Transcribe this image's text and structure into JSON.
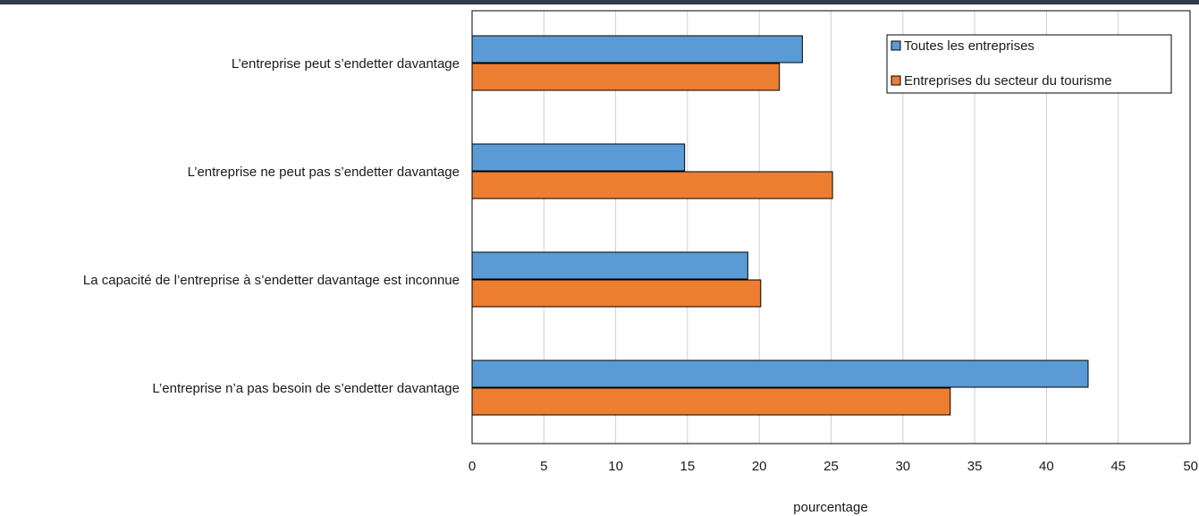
{
  "chart_data": {
    "type": "bar",
    "orientation": "horizontal",
    "title": "",
    "xlabel": "pourcentage",
    "ylabel": "",
    "categories": [
      "L’entreprise peut s’endetter davantage",
      "L’entreprise ne peut pas s’endetter davantage",
      "La capacité de l’entreprise à s’endetter davantage est inconnue",
      "L’entreprise n’a pas besoin de s’endetter davantage"
    ],
    "series": [
      {
        "name": "Toutes les entreprises",
        "color": "#5b9bd5",
        "values": [
          23.0,
          14.8,
          19.2,
          42.9
        ]
      },
      {
        "name": "Entreprises du secteur du tourisme",
        "color": "#ed7d31",
        "values": [
          21.4,
          25.1,
          20.1,
          33.3
        ]
      }
    ],
    "xlim": [
      0,
      50
    ],
    "xticks": [
      0,
      5,
      10,
      15,
      20,
      25,
      30,
      35,
      40,
      45,
      50
    ],
    "vertical_grid": true,
    "legend_position": "top-right"
  },
  "colors": {
    "top_rule": "#2f3a4a",
    "grid": "#cfcfcf",
    "bar_stroke": "#000000"
  }
}
